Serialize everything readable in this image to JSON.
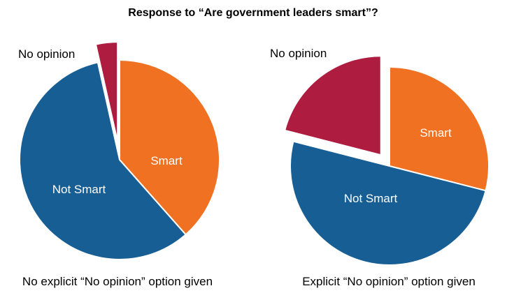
{
  "colors": {
    "smart": "#f07122",
    "not_smart": "#175e95",
    "no_opinion": "#ae1d40",
    "slice_border": "#ffffff"
  },
  "chart_data": {
    "type": "pie",
    "title": "Response to “Are government leaders smart”?",
    "charts": [
      {
        "caption": "No explicit “No opinion” option given",
        "slices": [
          {
            "label": "Smart",
            "value": 38.5,
            "color": "#f07122",
            "exploded": false
          },
          {
            "label": "Not Smart",
            "value": 58.0,
            "color": "#175e95",
            "exploded": false
          },
          {
            "label": "No opinion",
            "value": 3.5,
            "color": "#ae1d40",
            "exploded": true
          }
        ]
      },
      {
        "caption": "Explicit “No opinion” option given",
        "slices": [
          {
            "label": "Smart",
            "value": 29.0,
            "color": "#f07122",
            "exploded": false
          },
          {
            "label": "Not Smart",
            "value": 50.0,
            "color": "#175e95",
            "exploded": false
          },
          {
            "label": "No opinion",
            "value": 21.0,
            "color": "#ae1d40",
            "exploded": true
          }
        ]
      }
    ]
  }
}
